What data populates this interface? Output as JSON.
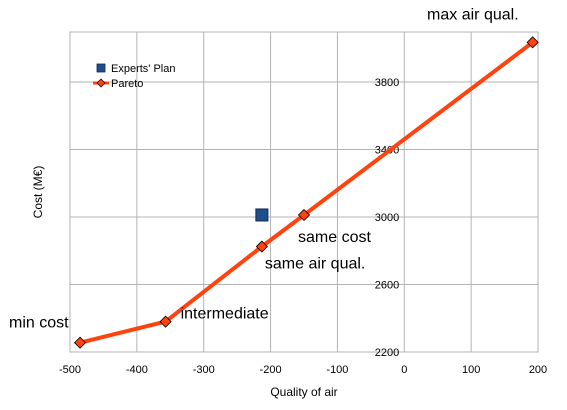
{
  "chart_data": {
    "type": "scatter",
    "xlabel": "Quality of air",
    "ylabel": "Cost (M€)",
    "xlim": [
      -500,
      200
    ],
    "ylim": [
      2200,
      4000
    ],
    "x_ticks": [
      -500,
      -400,
      -300,
      -200,
      -100,
      0,
      100,
      200
    ],
    "y_ticks": [
      2200,
      2600,
      3000,
      3400,
      3800
    ],
    "grid": true,
    "legend_placement": "top-left",
    "series": [
      {
        "name": "Experts' Plan",
        "marker": "square",
        "line": false,
        "color": "#1f4e8c",
        "points": [
          {
            "x": -213,
            "y": 3012
          }
        ]
      },
      {
        "name": "Pareto",
        "marker": "diamond",
        "line": true,
        "color": "#ff420e",
        "points": [
          {
            "x": -485,
            "y": 2255
          },
          {
            "x": -357,
            "y": 2380
          },
          {
            "x": -213,
            "y": 2825
          },
          {
            "x": -150,
            "y": 3012
          },
          {
            "x": 192,
            "y": 4035
          }
        ]
      }
    ],
    "annotations": [
      {
        "text": "min cost",
        "x": -485,
        "y": 2255
      },
      {
        "text": "intermediate",
        "x": -357,
        "y": 2380
      },
      {
        "text": "same air qual.",
        "x": -213,
        "y": 2825
      },
      {
        "text": "same cost",
        "x": -150,
        "y": 3012
      },
      {
        "text": "max air qual.",
        "x": 192,
        "y": 4035
      }
    ]
  }
}
